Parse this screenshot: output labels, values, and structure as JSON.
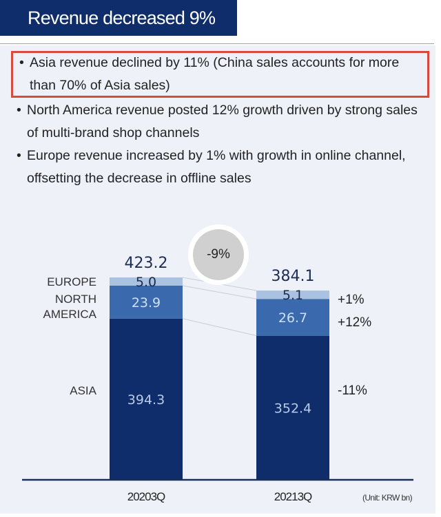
{
  "header": {
    "title": "Revenue decreased 9%"
  },
  "bullets": [
    "Asia revenue declined by 11% (China sales accounts for more than 70% of Asia sales)",
    "North America revenue posted 12% growth driven by strong sales of multi-brand shop channels",
    "Europe revenue increased by 1% with growth in online channel, offsetting the decrease in offline sales"
  ],
  "chart_data": {
    "type": "bar",
    "stacked": true,
    "categories": [
      "20203Q",
      "20213Q"
    ],
    "series": [
      {
        "name": "ASIA",
        "values": [
          394.3,
          352.4
        ],
        "change": "-11%",
        "color": "#0f2d6b"
      },
      {
        "name": "NORTH AMERICA",
        "values": [
          23.9,
          26.7
        ],
        "change": "+12%",
        "color": "#3a6aad"
      },
      {
        "name": "EUROPE",
        "values": [
          5.0,
          5.1
        ],
        "change": "+1%",
        "color": "#a9c2e2"
      }
    ],
    "totals": [
      "423.2",
      "384.1"
    ],
    "total_change": "-9%",
    "unit": "(Unit: KRW bn)"
  }
}
